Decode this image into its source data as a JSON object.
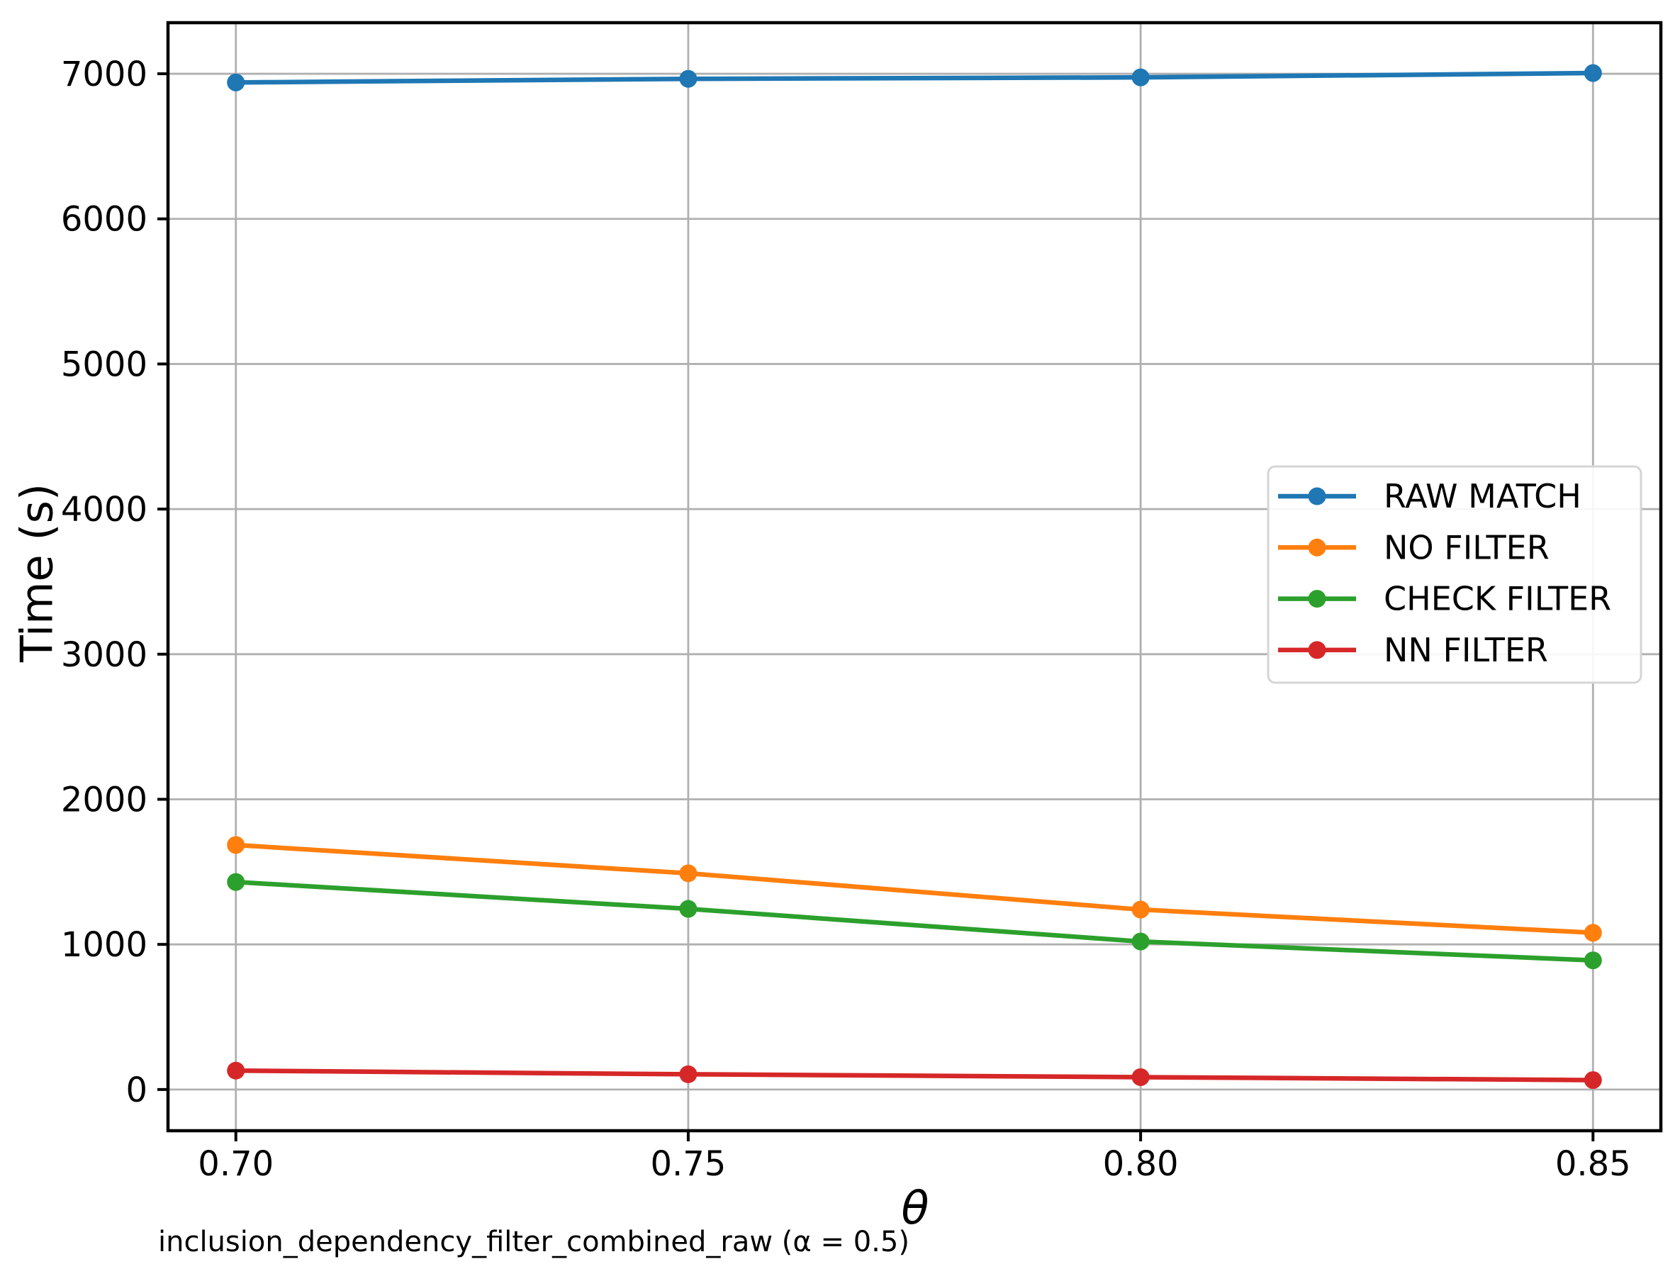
{
  "figure": {
    "caption": "inclusion_dependency_filter_combined_raw (α = 0.5)"
  },
  "chart_data": {
    "type": "line",
    "title": "",
    "xlabel": "θ",
    "ylabel": "Time (s)",
    "x": [
      0.7,
      0.75,
      0.8,
      0.85
    ],
    "x_tick_labels": [
      "0.70",
      "0.75",
      "0.80",
      "0.85"
    ],
    "y_ticks": [
      0,
      1000,
      2000,
      3000,
      4000,
      5000,
      6000,
      7000
    ],
    "xlim": [
      0.6925,
      0.8575
    ],
    "ylim": [
      -284,
      7352
    ],
    "grid": true,
    "grid_color": "#b0b0b0",
    "spine_color": "#000000",
    "legend_position": "center right",
    "legend_border_color": "#d5d5d5",
    "series": [
      {
        "name": "RAW MATCH",
        "color": "#1f77b4",
        "values": [
          6940,
          6965,
          6975,
          7005
        ]
      },
      {
        "name": "NO FILTER",
        "color": "#ff7f0e",
        "values": [
          1685,
          1490,
          1240,
          1080
        ]
      },
      {
        "name": "CHECK FILTER",
        "color": "#2ca02c",
        "values": [
          1430,
          1245,
          1020,
          890
        ]
      },
      {
        "name": "NN FILTER",
        "color": "#d62728",
        "values": [
          130,
          105,
          85,
          65
        ]
      }
    ]
  }
}
